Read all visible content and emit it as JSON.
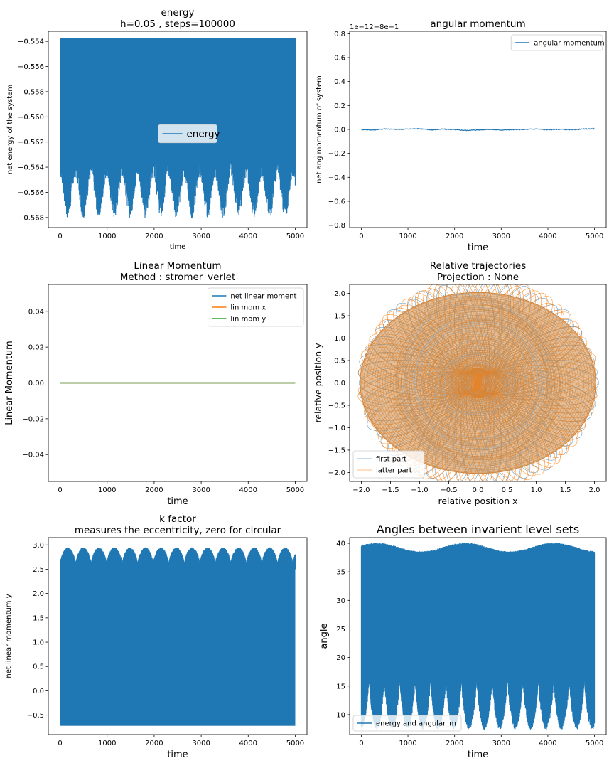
{
  "chart_data": [
    {
      "id": "energy",
      "type": "line",
      "title": "energy\nh=0.05 , steps=100000",
      "xlabel": "time",
      "ylabel": "net energy of the system",
      "xlim": [
        -250,
        5250
      ],
      "ylim": [
        -0.5688,
        -0.5532
      ],
      "xticks": [
        0,
        1000,
        2000,
        3000,
        4000,
        5000
      ],
      "xticklabels": [
        "0",
        "1000",
        "2000",
        "3000",
        "4000",
        "5000"
      ],
      "yticks": [
        -0.568,
        -0.566,
        -0.564,
        -0.562,
        -0.56,
        -0.558,
        -0.556,
        -0.554
      ],
      "yticklabels": [
        "−0.568",
        "−0.566",
        "−0.564",
        "−0.562",
        "−0.560",
        "−0.558",
        "−0.556",
        "−0.554"
      ],
      "series": [
        {
          "name": "energy",
          "color": "#1f77b4",
          "rendering": "dense oscillation band",
          "x": [
            0,
            5000
          ],
          "upper": -0.55375,
          "lower_envelope": {
            "x_start": 0,
            "x_end": 5000,
            "max": -0.5622,
            "min": -0.5681,
            "period": 330
          }
        }
      ],
      "legend": {
        "position": "center",
        "fontsize": "large",
        "entries": [
          "energy"
        ]
      },
      "grid": false
    },
    {
      "id": "angular",
      "type": "line",
      "title": "angular momentum",
      "xlabel": "time",
      "ylabel": "net ang momentum of system",
      "offset_text": "1e−12−8e−1",
      "xlim": [
        -250,
        5250
      ],
      "ylim": [
        -0.82,
        0.82
      ],
      "xticks": [
        0,
        1000,
        2000,
        3000,
        4000,
        5000
      ],
      "xticklabels": [
        "0",
        "1000",
        "2000",
        "3000",
        "4000",
        "5000"
      ],
      "yticks": [
        -0.8,
        -0.6,
        -0.4,
        -0.2,
        0.0,
        0.2,
        0.4,
        0.6,
        0.8
      ],
      "yticklabels": [
        "−0.8",
        "−0.6",
        "−0.4",
        "−0.2",
        "0.0",
        "0.2",
        "0.4",
        "0.6",
        "0.8"
      ],
      "series": [
        {
          "name": "angular momentum",
          "color": "#1f77b4",
          "x": [
            0,
            250,
            500,
            750,
            1000,
            1250,
            1500,
            1750,
            2000,
            2250,
            2500,
            2750,
            3000,
            3250,
            3500,
            3750,
            4000,
            4250,
            4500,
            4750,
            5000
          ],
          "y": [
            0.0,
            -0.005,
            0.005,
            0.0,
            0.003,
            0.006,
            -0.004,
            0.003,
            -0.002,
            -0.008,
            -0.004,
            0.0,
            -0.005,
            -0.002,
            0.0,
            0.004,
            -0.003,
            0.002,
            -0.003,
            0.003,
            0.006
          ]
        }
      ],
      "legend": {
        "position": "top-right",
        "entries": [
          "angular momentum"
        ]
      },
      "grid": false
    },
    {
      "id": "linear",
      "type": "line",
      "title": "Linear Momentum\nMethod : stromer_verlet",
      "xlabel": "time",
      "ylabel": "Linear Momentum",
      "xlim": [
        -250,
        5250
      ],
      "ylim": [
        -0.055,
        0.055
      ],
      "xticks": [
        0,
        1000,
        2000,
        3000,
        4000,
        5000
      ],
      "xticklabels": [
        "0",
        "1000",
        "2000",
        "3000",
        "4000",
        "5000"
      ],
      "yticks": [
        -0.04,
        -0.02,
        0.0,
        0.02,
        0.04
      ],
      "yticklabels": [
        "−0.04",
        "−0.02",
        "0.00",
        "0.02",
        "0.04"
      ],
      "series": [
        {
          "name": "net linear moment",
          "color": "#1f77b4",
          "x": [
            0,
            5000
          ],
          "y": [
            0,
            0
          ]
        },
        {
          "name": "lin mom x",
          "color": "#ff7f0e",
          "x": [
            0,
            5000
          ],
          "y": [
            0,
            0
          ]
        },
        {
          "name": "lin mom y",
          "color": "#2ca02c",
          "x": [
            0,
            5000
          ],
          "y": [
            0,
            0
          ]
        }
      ],
      "legend": {
        "position": "top-right",
        "entries": [
          "net linear moment",
          "lin mom x",
          "lin mom y"
        ]
      },
      "grid": false
    },
    {
      "id": "trajectory",
      "type": "line",
      "title": "Relative trajectories\nProjection : None",
      "xlabel": "relative position x",
      "ylabel": "relative position y",
      "xlim": [
        -2.2,
        2.2
      ],
      "ylim": [
        -2.2,
        2.2
      ],
      "xticks": [
        -2.0,
        -1.5,
        -1.0,
        -0.5,
        0.0,
        0.5,
        1.0,
        1.5,
        2.0
      ],
      "xticklabels": [
        "−2.0",
        "−1.5",
        "−1.0",
        "−0.5",
        "0.0",
        "0.5",
        "1.0",
        "1.5",
        "2.0"
      ],
      "yticks": [
        -2.0,
        -1.5,
        -1.0,
        -0.5,
        0.0,
        0.5,
        1.0,
        1.5,
        2.0
      ],
      "yticklabels": [
        "−2.0",
        "−1.5",
        "−1.0",
        "−0.5",
        "0.0",
        "0.5",
        "1.0",
        "1.5",
        "2.0"
      ],
      "series": [
        {
          "name": "first part",
          "color": "#1f77b4",
          "rendering": "precessing ellipses",
          "max_radius": 2.02,
          "min_radius": 0.02
        },
        {
          "name": "latter part",
          "color": "#ff7f0e",
          "rendering": "precessing ellipses",
          "max_radius": 2.02,
          "min_radius": 0.02
        }
      ],
      "legend": {
        "position": "bottom-left",
        "entries": [
          "first part",
          "latter part"
        ]
      },
      "grid": false
    },
    {
      "id": "kfactor",
      "type": "line",
      "title": "k factor\nmeasures the eccentricity, zero for circular",
      "xlabel": "time",
      "ylabel": "net linear momentum y",
      "xlim": [
        -250,
        5250
      ],
      "ylim": [
        -0.9,
        3.15
      ],
      "xticks": [
        0,
        1000,
        2000,
        3000,
        4000,
        5000
      ],
      "xticklabels": [
        "0",
        "1000",
        "2000",
        "3000",
        "4000",
        "5000"
      ],
      "yticks": [
        -0.5,
        0.0,
        0.5,
        1.0,
        1.5,
        2.0,
        2.5,
        3.0
      ],
      "yticklabels": [
        "−0.5",
        "0.0",
        "0.5",
        "1.0",
        "1.5",
        "2.0",
        "2.5",
        "3.0"
      ],
      "series": [
        {
          "name": "",
          "color": "#1f77b4",
          "rendering": "dense oscillation band",
          "x": [
            0,
            5000
          ],
          "lower": -0.72,
          "upper_envelope": {
            "max": 2.95,
            "min": 2.6,
            "period": 330
          }
        }
      ],
      "grid": false
    },
    {
      "id": "angles",
      "type": "line",
      "title": "Angles between invarient level sets",
      "xlabel": "time",
      "ylabel": "angle",
      "xlim": [
        -250,
        5250
      ],
      "ylim": [
        6.5,
        41
      ],
      "xticks": [
        0,
        1000,
        2000,
        3000,
        4000,
        5000
      ],
      "xticklabels": [
        "0",
        "1000",
        "2000",
        "3000",
        "4000",
        "5000"
      ],
      "yticks": [
        10,
        15,
        20,
        25,
        30,
        35,
        40
      ],
      "yticklabels": [
        "10",
        "15",
        "20",
        "25",
        "30",
        "35",
        "40"
      ],
      "series": [
        {
          "name": "energy and angular_m",
          "color": "#1f77b4",
          "rendering": "dense oscillation band",
          "x": [
            0,
            5000
          ],
          "upper_envelope": {
            "max": 39.8,
            "min": 38.3
          },
          "lower_envelope": {
            "max": 16.5,
            "min": 7.3,
            "period": 330
          }
        }
      ],
      "legend": {
        "position": "bottom-left",
        "entries": [
          "energy and angular_m"
        ]
      },
      "grid": false
    }
  ]
}
